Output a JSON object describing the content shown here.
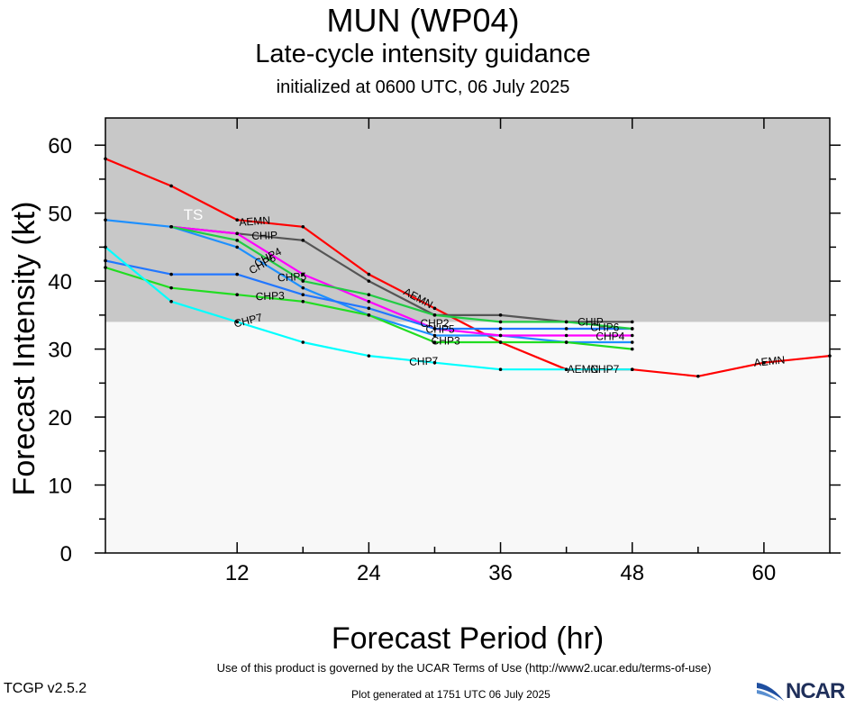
{
  "header": {
    "title": "MUN (WP04)",
    "subtitle": "Late-cycle intensity guidance",
    "initialized": "initialized at 0600 UTC, 06 July 2025"
  },
  "footer": {
    "terms": "Use of this product is governed by the UCAR Terms of Use (http://www2.ucar.edu/terms-of-use)",
    "version": "TCGP v2.5.2",
    "generated": "Plot generated at 1751 UTC   06 July 2025",
    "logo_text": "NCAR"
  },
  "chart_data": {
    "type": "line",
    "xlabel": "Forecast Period (hr)",
    "ylabel": "Forecast Intensity (kt)",
    "xlim": [
      0,
      66
    ],
    "ylim": [
      0,
      64
    ],
    "xticks": [
      12,
      24,
      36,
      48,
      60
    ],
    "yticks": [
      0,
      10,
      20,
      30,
      40,
      50,
      60
    ],
    "shaded_band": {
      "label": "TS",
      "from": 34,
      "to": 64,
      "color": "#c8c8c8"
    },
    "below_band_color": "#f8f8f8",
    "series": [
      {
        "name": "AEMN",
        "color": "#ff0000",
        "x": [
          0,
          6,
          12,
          18,
          24,
          30,
          36,
          42,
          48,
          54,
          60,
          66
        ],
        "y": [
          58,
          54,
          49,
          48,
          41,
          36,
          31,
          27,
          27,
          26,
          28,
          29
        ]
      },
      {
        "name": "CHIP",
        "color": "#555555",
        "x": [
          6,
          12,
          18,
          24,
          30,
          36,
          42,
          48
        ],
        "y": [
          48,
          47,
          46,
          40,
          35,
          35,
          34,
          34
        ]
      },
      {
        "name": "CHP2",
        "color": "#1e90ff",
        "x": [
          0,
          6,
          12,
          18,
          24,
          30,
          36,
          42,
          48
        ],
        "y": [
          49,
          48,
          45,
          39,
          35,
          32,
          32,
          31,
          31
        ]
      },
      {
        "name": "CHP3",
        "color": "#22dd22",
        "x": [
          0,
          6,
          12,
          18,
          24,
          30,
          36,
          42,
          48
        ],
        "y": [
          42,
          39,
          38,
          37,
          35,
          31,
          31,
          31,
          30
        ]
      },
      {
        "name": "CHP4",
        "color": "#ff00ff",
        "x": [
          6,
          12,
          18,
          24,
          30,
          36,
          42,
          48
        ],
        "y": [
          48,
          47,
          41,
          37,
          33,
          32,
          32,
          32
        ]
      },
      {
        "name": "CHP5",
        "color": "#2277ff",
        "x": [
          0,
          6,
          12,
          18,
          24,
          30,
          36,
          42,
          48
        ],
        "y": [
          43,
          41,
          41,
          38,
          36,
          33,
          33,
          33,
          33
        ]
      },
      {
        "name": "CHP6",
        "color": "#22cc44",
        "x": [
          6,
          12,
          18,
          24,
          30,
          36,
          42,
          48
        ],
        "y": [
          48,
          46,
          40,
          38,
          35,
          34,
          34,
          33
        ]
      },
      {
        "name": "CHP7",
        "color": "#00ffff",
        "x": [
          0,
          6,
          12,
          18,
          24,
          30,
          36,
          42,
          48
        ],
        "y": [
          45,
          37,
          34,
          31,
          29,
          28,
          27,
          27,
          27
        ]
      }
    ],
    "annotations": [
      {
        "text": "AEMN",
        "x": 13.6,
        "y": 48.8,
        "angle": -4
      },
      {
        "text": "AEMN",
        "x": 28.5,
        "y": 37.5,
        "angle": 28
      },
      {
        "text": "AEMN",
        "x": 43.5,
        "y": 27.0,
        "angle": 0
      },
      {
        "text": "AEMN",
        "x": 60.5,
        "y": 28.2,
        "angle": -6
      },
      {
        "text": "CHIP",
        "x": 14.5,
        "y": 46.7,
        "angle": -2
      },
      {
        "text": "CHIP",
        "x": 44.2,
        "y": 34.0,
        "angle": 0
      },
      {
        "text": "CHP3",
        "x": 15.0,
        "y": 37.8,
        "angle": -2
      },
      {
        "text": "CHP3",
        "x": 31.0,
        "y": 31.2,
        "angle": 0
      },
      {
        "text": "CHP4",
        "x": 14.8,
        "y": 43.5,
        "angle": -28
      },
      {
        "text": "CHP4",
        "x": 46.0,
        "y": 31.9,
        "angle": 0
      },
      {
        "text": "CHP5",
        "x": 17.0,
        "y": 40.6,
        "angle": -3
      },
      {
        "text": "CHP5",
        "x": 30.5,
        "y": 32.9,
        "angle": 0
      },
      {
        "text": "CHP6",
        "x": 14.3,
        "y": 42.5,
        "angle": -30
      },
      {
        "text": "CHP6",
        "x": 45.5,
        "y": 33.2,
        "angle": 0
      },
      {
        "text": "CHP2",
        "x": 30.0,
        "y": 33.8,
        "angle": 0
      },
      {
        "text": "CHP7",
        "x": 13.0,
        "y": 34.2,
        "angle": -14
      },
      {
        "text": "CHP7",
        "x": 29.0,
        "y": 28.2,
        "angle": -2
      },
      {
        "text": "CHP7",
        "x": 45.5,
        "y": 27.0,
        "angle": 0
      }
    ]
  }
}
